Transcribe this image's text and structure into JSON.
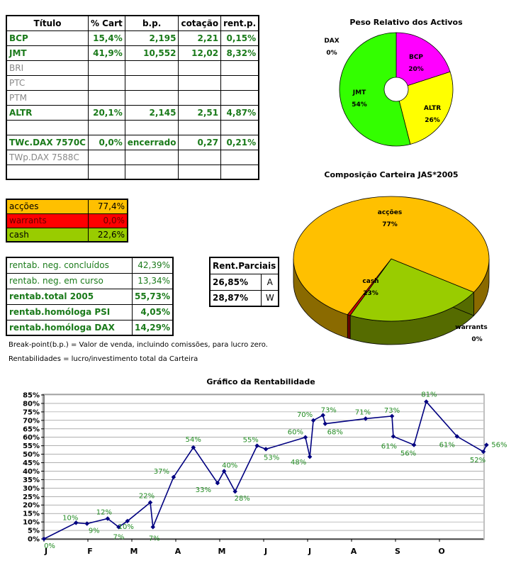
{
  "portfolio_table": {
    "headers": [
      "Título",
      "% Cart",
      "b.p.",
      "cotação",
      "rent.p."
    ],
    "rows": [
      {
        "name": "BCP",
        "pct": "15,4%",
        "bp": "2,195",
        "cot": "2,21",
        "rent": "0,15%",
        "style": "green"
      },
      {
        "name": "JMT",
        "pct": "41,9%",
        "bp": "10,552",
        "cot": "12,02",
        "rent": "8,32%",
        "style": "green"
      },
      {
        "name": "BRI",
        "pct": "",
        "bp": "",
        "cot": "",
        "rent": "",
        "style": "gray"
      },
      {
        "name": "PTC",
        "pct": "",
        "bp": "",
        "cot": "",
        "rent": "",
        "style": "gray"
      },
      {
        "name": "PTM",
        "pct": "",
        "bp": "",
        "cot": "",
        "rent": "",
        "style": "gray"
      },
      {
        "name": "ALTR",
        "pct": "20,1%",
        "bp": "2,145",
        "cot": "2,51",
        "rent": "4,87%",
        "style": "green"
      },
      {
        "name": "",
        "pct": "",
        "bp": "",
        "cot": "",
        "rent": "",
        "style": ""
      },
      {
        "name": "TWc.DAX 7570C",
        "pct": "0,0%",
        "bp": "encerrado",
        "cot": "0,27",
        "rent": "0,21%",
        "style": "green"
      },
      {
        "name": "TWp.DAX 7588C",
        "pct": "",
        "bp": "",
        "cot": "",
        "rent": "",
        "style": "gray"
      },
      {
        "name": "",
        "pct": "",
        "bp": "",
        "cot": "",
        "rent": "",
        "style": ""
      }
    ]
  },
  "allocation": [
    {
      "label": "acções",
      "value": "77,4%",
      "color": "#ffc000"
    },
    {
      "label": "warrants",
      "value": "0,0%",
      "color": "#ff0000"
    },
    {
      "label": "cash",
      "value": "22,6%",
      "color": "#99cc00"
    }
  ],
  "rentabilidade": [
    {
      "label": "rentab. neg. concluídos",
      "value": "42,39%",
      "bold": false
    },
    {
      "label": "rentab. neg. em curso",
      "value": "13,34%",
      "bold": false
    },
    {
      "label": "rentab.total 2005",
      "value": "55,73%",
      "bold": true
    },
    {
      "label": "rentab.homóloga PSI",
      "value": "4,05%",
      "bold": true
    },
    {
      "label": "rentab.homóloga DAX",
      "value": "14,29%",
      "bold": true
    }
  ],
  "parciais": {
    "header": "Rent.Parciais",
    "rows": [
      {
        "value": "26,85%",
        "period": "A"
      },
      {
        "value": "28,87%",
        "period": "W"
      }
    ]
  },
  "notes": {
    "breakpoint": "Break-point(b.p.) = Valor de venda, incluindo comissões, para lucro zero.",
    "rentab": "Rentabilidades = lucro/investimento total da Carteira"
  },
  "chart_data": [
    {
      "type": "pie",
      "title": "Peso Relativo dos Activos",
      "slices": [
        {
          "label": "BCP",
          "pct_label": "20%",
          "value": 20,
          "color": "#ff00ff"
        },
        {
          "label": "ALTR",
          "pct_label": "26%",
          "value": 26,
          "color": "#ffff00"
        },
        {
          "label": "JMT",
          "pct_label": "54%",
          "value": 54,
          "color": "#33ff00"
        },
        {
          "label": "DAX",
          "pct_label": "0%",
          "value": 0,
          "color": "#ff0000"
        }
      ]
    },
    {
      "type": "pie",
      "title": "Composição Carteira JAS*2005",
      "slices": [
        {
          "label": "acções",
          "pct_label": "77%",
          "value": 77,
          "color": "#ffc000"
        },
        {
          "label": "warrants",
          "pct_label": "0%",
          "value": 0.5,
          "color": "#cc0000"
        },
        {
          "label": "cash",
          "pct_label": "23%",
          "value": 23,
          "color": "#99cc00"
        }
      ]
    },
    {
      "type": "line",
      "title": "Gráfico da Rentabilidade",
      "ylim": [
        0,
        85
      ],
      "yticks": [
        "0%",
        "5%",
        "10%",
        "15%",
        "20%",
        "25%",
        "30%",
        "35%",
        "40%",
        "45%",
        "50%",
        "55%",
        "60%",
        "65%",
        "70%",
        "75%",
        "80%",
        "85%"
      ],
      "xlim": [
        0,
        10
      ],
      "months": [
        "J",
        "F",
        "M",
        "A",
        "M",
        "J",
        "J",
        "A",
        "S",
        "O"
      ],
      "series_color": "#000080",
      "label_color": "#228b22",
      "points": [
        {
          "x": 0.0,
          "y": 0,
          "label": "0%"
        },
        {
          "x": 0.73,
          "y": 9.5,
          "label": "10%"
        },
        {
          "x": 0.98,
          "y": 9,
          "label": "9%"
        },
        {
          "x": 1.45,
          "y": 12,
          "label": "12%"
        },
        {
          "x": 1.7,
          "y": 7,
          "label": "7%"
        },
        {
          "x": 1.9,
          "y": 10.5,
          "label": "10%"
        },
        {
          "x": 2.42,
          "y": 21.5,
          "label": "22%"
        },
        {
          "x": 2.48,
          "y": 7,
          "label": "7%"
        },
        {
          "x": 2.95,
          "y": 36.5,
          "label": "37%"
        },
        {
          "x": 3.4,
          "y": 54,
          "label": "54%"
        },
        {
          "x": 3.95,
          "y": 33,
          "label": "33%"
        },
        {
          "x": 4.1,
          "y": 40,
          "label": "40%"
        },
        {
          "x": 4.35,
          "y": 28,
          "label": "28%"
        },
        {
          "x": 4.85,
          "y": 55,
          "label": "55%"
        },
        {
          "x": 5.05,
          "y": 53,
          "label": "53%"
        },
        {
          "x": 5.95,
          "y": 60,
          "label": "60%"
        },
        {
          "x": 6.05,
          "y": 48.5,
          "label": "48%"
        },
        {
          "x": 6.13,
          "y": 70,
          "label": "70%"
        },
        {
          "x": 6.35,
          "y": 73,
          "label": "73%"
        },
        {
          "x": 6.4,
          "y": 68,
          "label": "68%"
        },
        {
          "x": 7.32,
          "y": 71,
          "label": "71%"
        },
        {
          "x": 7.92,
          "y": 72.5,
          "label": "73%"
        },
        {
          "x": 7.95,
          "y": 60.5,
          "label": "61%"
        },
        {
          "x": 8.42,
          "y": 55.5,
          "label": "56%"
        },
        {
          "x": 8.7,
          "y": 81,
          "label": "81%"
        },
        {
          "x": 9.4,
          "y": 60.5,
          "label": "61%"
        },
        {
          "x": 10.0,
          "y": 51.5,
          "label": "52%"
        },
        {
          "x": 10.07,
          "y": 55.5,
          "label": "56%"
        }
      ]
    }
  ]
}
